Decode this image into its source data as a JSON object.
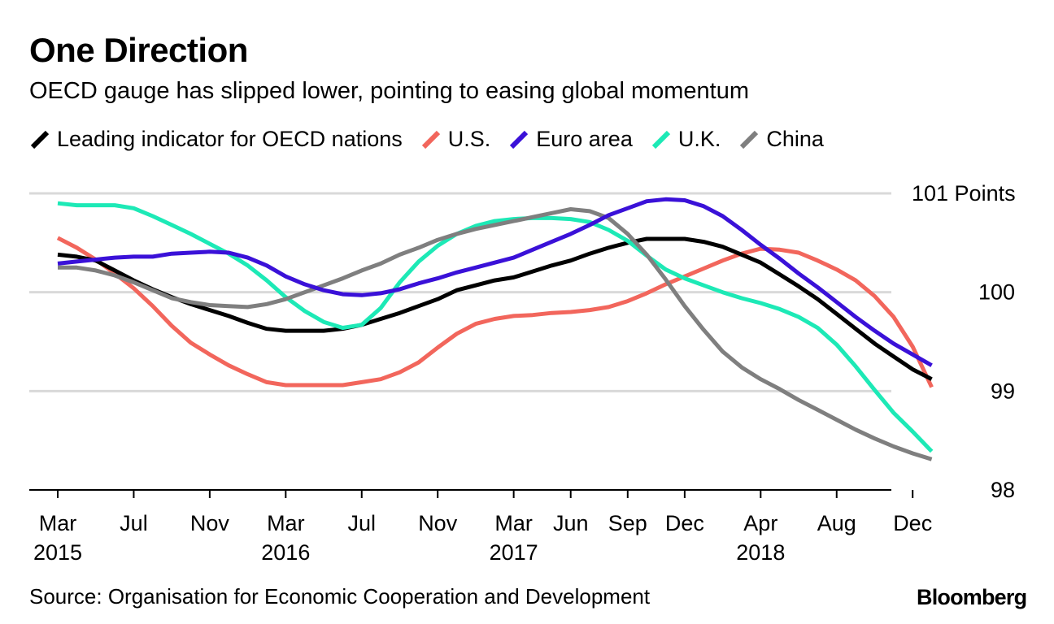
{
  "header": {
    "title": "One Direction",
    "subtitle": "OECD gauge has slipped lower, pointing to easing global momentum"
  },
  "footer": {
    "source": "Source: Organisation for Economic Cooperation and Development",
    "brand": "Bloomberg"
  },
  "chart_data": {
    "type": "line",
    "title": "One Direction",
    "subtitle": "OECD gauge has slipped lower, pointing to easing global momentum",
    "xlabel": "",
    "ylabel": "Points",
    "ylim": [
      98,
      101
    ],
    "yticks": [
      98,
      99,
      100,
      101
    ],
    "ytick_labels": [
      "98",
      "99",
      "100",
      "101 Points"
    ],
    "grid": true,
    "legend_position": "top",
    "x_tick_indices": [
      0,
      4,
      8,
      12,
      16,
      20,
      24,
      27,
      30,
      33,
      37,
      41,
      45
    ],
    "x_tick_labels": [
      [
        "Mar",
        "2015"
      ],
      [
        "Jul",
        ""
      ],
      [
        "Nov",
        ""
      ],
      [
        "Mar",
        "2016"
      ],
      [
        "Jul",
        ""
      ],
      [
        "Nov",
        ""
      ],
      [
        "Mar",
        "2017"
      ],
      [
        "Jun",
        ""
      ],
      [
        "Sep",
        ""
      ],
      [
        "Dec",
        ""
      ],
      [
        "Apr",
        "2018"
      ],
      [
        "Aug",
        ""
      ],
      [
        "Dec",
        ""
      ]
    ],
    "x": [
      "2015-03",
      "2015-04",
      "2015-05",
      "2015-06",
      "2015-07",
      "2015-08",
      "2015-09",
      "2015-10",
      "2015-11",
      "2015-12",
      "2016-01",
      "2016-02",
      "2016-03",
      "2016-04",
      "2016-05",
      "2016-06",
      "2016-07",
      "2016-08",
      "2016-09",
      "2016-10",
      "2016-11",
      "2016-12",
      "2017-01",
      "2017-02",
      "2017-03",
      "2017-04",
      "2017-05",
      "2017-06",
      "2017-07",
      "2017-08",
      "2017-09",
      "2017-10",
      "2017-11",
      "2017-12",
      "2018-01",
      "2018-02",
      "2018-03",
      "2018-04",
      "2018-05",
      "2018-06",
      "2018-07",
      "2018-08",
      "2018-09",
      "2018-10",
      "2018-11",
      "2018-12",
      "2019-01"
    ],
    "series": [
      {
        "name": "Leading indicator for OECD nations",
        "color": "#000000",
        "values": [
          100.38,
          100.36,
          100.32,
          100.22,
          100.12,
          100.03,
          99.95,
          99.88,
          99.82,
          99.76,
          99.69,
          99.63,
          99.61,
          99.61,
          99.61,
          99.63,
          99.67,
          99.73,
          99.79,
          99.86,
          99.93,
          100.02,
          100.07,
          100.12,
          100.15,
          100.21,
          100.27,
          100.32,
          100.39,
          100.45,
          100.5,
          100.54,
          100.54,
          100.54,
          100.51,
          100.46,
          100.38,
          100.3,
          100.18,
          100.06,
          99.93,
          99.78,
          99.63,
          99.48,
          99.35,
          99.22,
          99.12
        ]
      },
      {
        "name": "U.S.",
        "color": "#f2665c",
        "values": [
          100.55,
          100.45,
          100.33,
          100.19,
          100.04,
          99.86,
          99.66,
          99.49,
          99.37,
          99.26,
          99.17,
          99.09,
          99.06,
          99.06,
          99.06,
          99.06,
          99.09,
          99.12,
          99.19,
          99.29,
          99.44,
          99.58,
          99.68,
          99.73,
          99.76,
          99.77,
          99.79,
          99.8,
          99.82,
          99.85,
          99.91,
          99.99,
          100.08,
          100.16,
          100.24,
          100.32,
          100.39,
          100.44,
          100.43,
          100.4,
          100.32,
          100.23,
          100.12,
          99.96,
          99.75,
          99.45,
          99.04
        ]
      },
      {
        "name": "Euro area",
        "color": "#3a11d8",
        "values": [
          100.29,
          100.31,
          100.33,
          100.35,
          100.36,
          100.36,
          100.39,
          100.4,
          100.41,
          100.4,
          100.35,
          100.27,
          100.16,
          100.08,
          100.02,
          99.98,
          99.97,
          99.99,
          100.03,
          100.09,
          100.14,
          100.2,
          100.25,
          100.3,
          100.35,
          100.43,
          100.51,
          100.59,
          100.68,
          100.78,
          100.85,
          100.92,
          100.94,
          100.93,
          100.87,
          100.77,
          100.63,
          100.48,
          100.34,
          100.19,
          100.05,
          99.9,
          99.75,
          99.61,
          99.48,
          99.37,
          99.26
        ]
      },
      {
        "name": "U.K.",
        "color": "#1de9b6",
        "values": [
          100.9,
          100.88,
          100.88,
          100.88,
          100.85,
          100.77,
          100.68,
          100.59,
          100.49,
          100.39,
          100.27,
          100.12,
          99.95,
          99.81,
          99.7,
          99.64,
          99.67,
          99.84,
          100.1,
          100.31,
          100.47,
          100.59,
          100.67,
          100.72,
          100.74,
          100.75,
          100.75,
          100.74,
          100.71,
          100.63,
          100.52,
          100.37,
          100.23,
          100.14,
          100.07,
          100.0,
          99.94,
          99.89,
          99.83,
          99.75,
          99.64,
          99.47,
          99.25,
          99.01,
          98.78,
          98.59,
          98.39
        ]
      },
      {
        "name": "China",
        "color": "#7f7f7f",
        "values": [
          100.25,
          100.25,
          100.22,
          100.17,
          100.1,
          100.02,
          99.94,
          99.9,
          99.87,
          99.86,
          99.85,
          99.88,
          99.93,
          100.0,
          100.07,
          100.14,
          100.22,
          100.29,
          100.38,
          100.45,
          100.53,
          100.59,
          100.64,
          100.68,
          100.72,
          100.76,
          100.8,
          100.84,
          100.82,
          100.75,
          100.59,
          100.38,
          100.13,
          99.86,
          99.62,
          99.4,
          99.24,
          99.12,
          99.02,
          98.91,
          98.81,
          98.71,
          98.61,
          98.52,
          98.44,
          98.37,
          98.31
        ]
      }
    ]
  }
}
